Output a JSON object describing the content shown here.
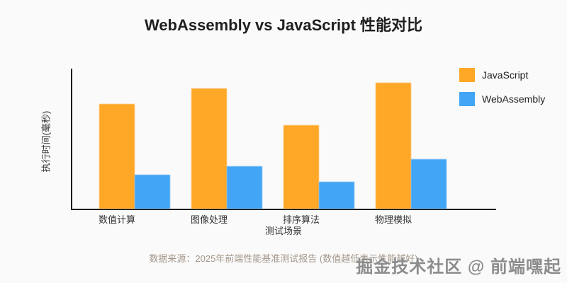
{
  "title": "WebAssembly vs JavaScript 性能对比",
  "footer": "数据来源：2025年前端性能基准测试报告 (数值越低表示性能越好)",
  "watermark": "掘金技术社区 @ 前端嘿起",
  "colors": {
    "background": "#fafafa",
    "axis": "#1a1a1a",
    "title_text": "#1f1f1f",
    "tick_text": "#333333",
    "footer_text": "#a3968a",
    "watermark_text": "#8c8c8c",
    "javascript": "#FFA726",
    "webassembly": "#42A5F5"
  },
  "chart_data": {
    "type": "bar",
    "title": "WebAssembly vs JavaScript 性能对比",
    "categories": [
      "数值计算",
      "图像处理",
      "排序算法",
      "物理模拟"
    ],
    "series": [
      {
        "name": "JavaScript",
        "color": "#FFA726",
        "values": [
          74,
          85,
          59,
          89
        ]
      },
      {
        "name": "WebAssembly",
        "color": "#42A5F5",
        "values": [
          24,
          30,
          19,
          35
        ]
      }
    ],
    "xlabel": "测试场景",
    "ylabel": "执行时间(毫秒)",
    "ylim": [
      0,
      100
    ],
    "grid": false,
    "legend_position": "top-right"
  }
}
